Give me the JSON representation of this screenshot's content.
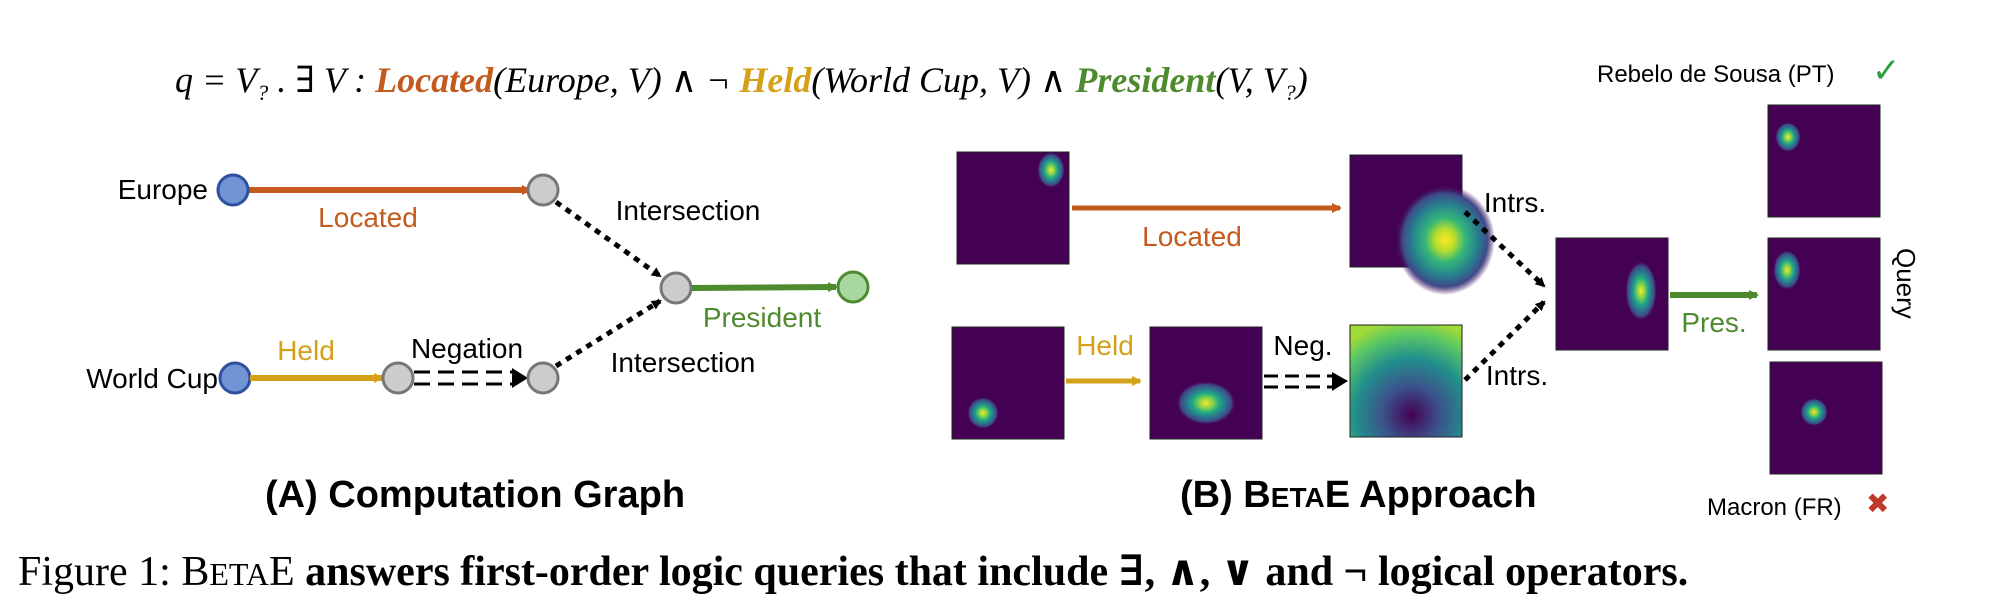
{
  "query": {
    "lhs": "q = V",
    "lhs_sub": "?",
    "exists": " . ∃ V : ",
    "rel1": "Located",
    "args1": "(Europe, V) ∧ ¬ ",
    "rel2": "Held",
    "args2": "(World Cup, V) ∧ ",
    "rel3": "President",
    "args3": "(V, V",
    "args3_sub": "?",
    "args3_end": ")"
  },
  "graph_a": {
    "node_europe": "Europe",
    "node_worldcup": "World Cup",
    "edge_located": "Located",
    "edge_held": "Held",
    "op_negation": "Negation",
    "op_intersection_top": "Intersection",
    "op_intersection_bottom": "Intersection",
    "edge_president": "President",
    "panel_title": "(A) Computation Graph"
  },
  "graph_b": {
    "edge_located": "Located",
    "edge_held": "Held",
    "op_neg": "Neg.",
    "op_intrs_top": "Intrs.",
    "op_intrs_bottom": "Intrs.",
    "edge_pres": "Pres.",
    "query_label": "Query",
    "answer_top": "Rebelo de Sousa (PT)",
    "answer_bottom": "Macron (FR)",
    "panel_title_prefix": "(B) B",
    "panel_title_small": "ETA",
    "panel_title_suffix": "E Approach"
  },
  "caption": {
    "label": "Figure 1: B",
    "label_small": "ETA",
    "label_end": "E ",
    "text": "answers first-order logic queries that include ∃, ∧, ∨ and ¬ logical operators."
  },
  "colors": {
    "located": "#c55a1e",
    "held": "#d4a017",
    "president": "#4e8a2e",
    "entity_node": "#7094d4",
    "answer_node": "#a8d8a0",
    "intermediate_node": "#cccccc",
    "heatmap_bg": "#440154",
    "check": "#2e9e3e",
    "cross": "#c0392b"
  }
}
